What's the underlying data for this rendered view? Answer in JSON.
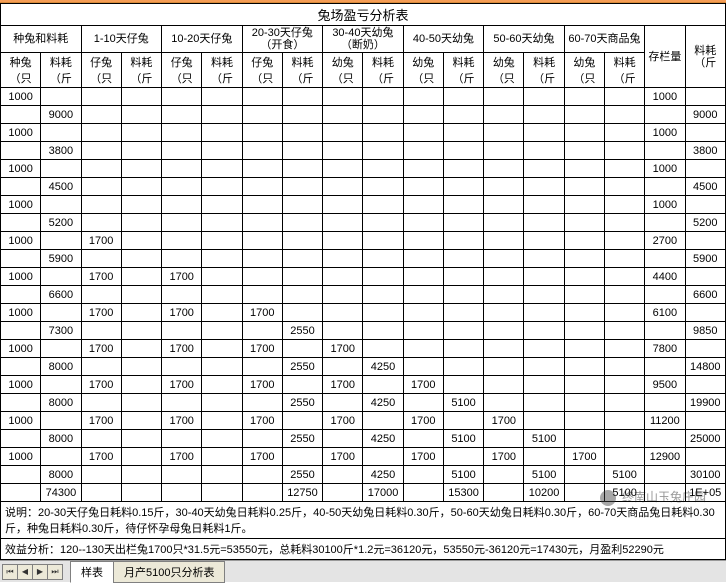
{
  "title": "兔场盈亏分析表",
  "groups": [
    {
      "label": "种兔和料耗",
      "sub": [
        "种兔（只",
        "料耗（斤"
      ]
    },
    {
      "label": "1-10天仔兔",
      "sub": [
        "仔兔（只",
        "料耗（斤"
      ]
    },
    {
      "label": "10-20天仔兔",
      "sub": [
        "仔兔（只",
        "料耗（斤"
      ]
    },
    {
      "label": "20-30天仔兔（开食）",
      "sub": [
        "仔兔（只",
        "料耗（斤"
      ]
    },
    {
      "label": "30-40天幼兔（断奶）",
      "sub": [
        "幼兔（只",
        "料耗（斤"
      ]
    },
    {
      "label": "40-50天幼兔",
      "sub": [
        "幼兔（只",
        "料耗（斤"
      ]
    },
    {
      "label": "50-60天幼兔",
      "sub": [
        "幼兔（只",
        "料耗（斤"
      ]
    },
    {
      "label": "60-70天商品兔",
      "sub": [
        "幼兔（只",
        "料耗（斤"
      ]
    },
    {
      "label": "存栏量",
      "sub": [
        ""
      ]
    },
    {
      "label": "料耗（斤",
      "sub": [
        ""
      ]
    }
  ],
  "rows": [
    [
      "1000",
      "",
      "",
      "",
      "",
      "",
      "",
      "",
      "",
      "",
      "",
      "",
      "",
      "",
      "",
      "",
      "1000",
      ""
    ],
    [
      "",
      "9000",
      "",
      "",
      "",
      "",
      "",
      "",
      "",
      "",
      "",
      "",
      "",
      "",
      "",
      "",
      "",
      "9000"
    ],
    [
      "1000",
      "",
      "",
      "",
      "",
      "",
      "",
      "",
      "",
      "",
      "",
      "",
      "",
      "",
      "",
      "",
      "1000",
      ""
    ],
    [
      "",
      "3800",
      "",
      "",
      "",
      "",
      "",
      "",
      "",
      "",
      "",
      "",
      "",
      "",
      "",
      "",
      "",
      "3800"
    ],
    [
      "1000",
      "",
      "",
      "",
      "",
      "",
      "",
      "",
      "",
      "",
      "",
      "",
      "",
      "",
      "",
      "",
      "1000",
      ""
    ],
    [
      "",
      "4500",
      "",
      "",
      "",
      "",
      "",
      "",
      "",
      "",
      "",
      "",
      "",
      "",
      "",
      "",
      "",
      "4500"
    ],
    [
      "1000",
      "",
      "",
      "",
      "",
      "",
      "",
      "",
      "",
      "",
      "",
      "",
      "",
      "",
      "",
      "",
      "1000",
      ""
    ],
    [
      "",
      "5200",
      "",
      "",
      "",
      "",
      "",
      "",
      "",
      "",
      "",
      "",
      "",
      "",
      "",
      "",
      "",
      "5200"
    ],
    [
      "1000",
      "",
      "1700",
      "",
      "",
      "",
      "",
      "",
      "",
      "",
      "",
      "",
      "",
      "",
      "",
      "",
      "2700",
      ""
    ],
    [
      "",
      "5900",
      "",
      "",
      "",
      "",
      "",
      "",
      "",
      "",
      "",
      "",
      "",
      "",
      "",
      "",
      "",
      "5900"
    ],
    [
      "1000",
      "",
      "1700",
      "",
      "1700",
      "",
      "",
      "",
      "",
      "",
      "",
      "",
      "",
      "",
      "",
      "",
      "4400",
      ""
    ],
    [
      "",
      "6600",
      "",
      "",
      "",
      "",
      "",
      "",
      "",
      "",
      "",
      "",
      "",
      "",
      "",
      "",
      "",
      "6600"
    ],
    [
      "1000",
      "",
      "1700",
      "",
      "1700",
      "",
      "1700",
      "",
      "",
      "",
      "",
      "",
      "",
      "",
      "",
      "",
      "6100",
      ""
    ],
    [
      "",
      "7300",
      "",
      "",
      "",
      "",
      "",
      "2550",
      "",
      "",
      "",
      "",
      "",
      "",
      "",
      "",
      "",
      "9850"
    ],
    [
      "1000",
      "",
      "1700",
      "",
      "1700",
      "",
      "1700",
      "",
      "1700",
      "",
      "",
      "",
      "",
      "",
      "",
      "",
      "7800",
      ""
    ],
    [
      "",
      "8000",
      "",
      "",
      "",
      "",
      "",
      "2550",
      "",
      "4250",
      "",
      "",
      "",
      "",
      "",
      "",
      "",
      "14800"
    ],
    [
      "1000",
      "",
      "1700",
      "",
      "1700",
      "",
      "1700",
      "",
      "1700",
      "",
      "1700",
      "",
      "",
      "",
      "",
      "",
      "9500",
      ""
    ],
    [
      "",
      "8000",
      "",
      "",
      "",
      "",
      "",
      "2550",
      "",
      "4250",
      "",
      "5100",
      "",
      "",
      "",
      "",
      "",
      "19900"
    ],
    [
      "1000",
      "",
      "1700",
      "",
      "1700",
      "",
      "1700",
      "",
      "1700",
      "",
      "1700",
      "",
      "1700",
      "",
      "",
      "",
      "11200",
      ""
    ],
    [
      "",
      "8000",
      "",
      "",
      "",
      "",
      "",
      "2550",
      "",
      "4250",
      "",
      "5100",
      "",
      "5100",
      "",
      "",
      "",
      "25000"
    ],
    [
      "1000",
      "",
      "1700",
      "",
      "1700",
      "",
      "1700",
      "",
      "1700",
      "",
      "1700",
      "",
      "1700",
      "",
      "1700",
      "",
      "12900",
      ""
    ],
    [
      "",
      "8000",
      "",
      "",
      "",
      "",
      "",
      "2550",
      "",
      "4250",
      "",
      "5100",
      "",
      "5100",
      "",
      "5100",
      "",
      "30100"
    ],
    [
      "",
      "74300",
      "",
      "",
      "",
      "",
      "",
      "12750",
      "",
      "17000",
      "",
      "15300",
      "",
      "10200",
      "",
      "5100",
      "",
      "1E+05"
    ]
  ],
  "note1": "说明：20-30天仔兔日耗料0.15斤，30-40天幼兔日耗料0.25斤，40-50天幼兔日耗料0.30斤，50-60天幼兔日耗料0.30斤，60-70天商品兔日耗料0.30斤，种兔日耗料0.30斤，待仔怀孕母兔日耗料1斤。",
  "note2": "效益分析：120--130天出栏兔1700只*31.5元=53550元，总耗料30100斤*1.2元=36120元，53550元-36120元=17430元，月盈利52290元",
  "tabs": {
    "active": "样表",
    "items": [
      "样表",
      "月产5100只分析表"
    ]
  },
  "watermark": "终南山玉兔庄园",
  "colors": {
    "topbar": "#f59d56",
    "grid": "#000000",
    "tabbar_bg": "#e4e4e4",
    "tab_bg": "#ece9d8",
    "tab_active_bg": "#ffffff"
  }
}
